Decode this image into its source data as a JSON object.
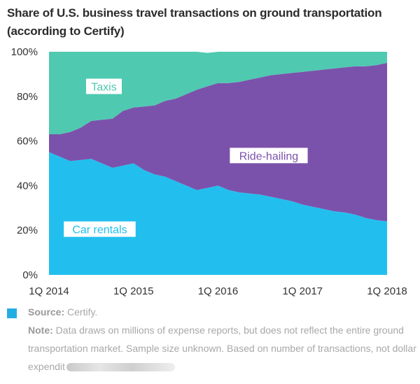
{
  "title": "Share of U.S. business travel transactions on ground transportation (according to Certify)",
  "colors": {
    "car_rentals": "#22bfee",
    "ride_hailing": "#7b52ab",
    "taxis": "#4fc9b0",
    "label_bg": "#ffffff"
  },
  "footer": {
    "source_label": "Source:",
    "source_text": "Certify.",
    "note_label": "Note:",
    "note_text": "Data draws on millions of expense reports, but does not reflect the entire ground transportation market. Sample size unknown. Based on number of transactions, not dollar expendit"
  },
  "chart_data": {
    "type": "area",
    "stacked": true,
    "title": "Share of U.S. business travel transactions on ground transportation (according to Certify)",
    "x_tick_labels": [
      "1Q 2014",
      "1Q 2015",
      "1Q 2016",
      "1Q 2017",
      "1Q 2018"
    ],
    "x_tick_positions": [
      0,
      4,
      8,
      12,
      16
    ],
    "x": [
      0,
      0.5,
      1,
      1.5,
      2,
      2.5,
      3,
      3.5,
      4,
      4.5,
      5,
      5.5,
      6,
      6.5,
      7,
      7.5,
      8,
      8.5,
      9,
      9.5,
      10,
      10.5,
      11,
      11.5,
      12,
      12.5,
      13,
      13.5,
      14,
      14.5,
      15,
      15.5,
      16
    ],
    "y_tick_labels": [
      "0%",
      "20%",
      "40%",
      "60%",
      "80%",
      "100%"
    ],
    "ylim": [
      0,
      100
    ],
    "series": [
      {
        "name": "Car rentals",
        "label_position": [
          2.4,
          20.5
        ],
        "values": [
          55,
          53,
          51,
          51.5,
          52,
          50,
          48,
          49,
          50,
          47,
          45,
          44,
          42,
          40,
          38,
          39,
          40,
          38,
          37,
          36.5,
          36,
          35,
          34,
          33,
          31.5,
          30.5,
          29.5,
          28.5,
          28,
          27,
          25.5,
          24.5,
          24
        ]
      },
      {
        "name": "Ride-hailing",
        "label_position": [
          10.4,
          53.5
        ],
        "values": [
          8,
          10,
          13,
          14.5,
          17,
          19.5,
          22,
          24.5,
          25,
          28.5,
          31,
          34,
          37,
          41,
          45,
          45.5,
          46,
          48,
          49.5,
          51,
          52.5,
          54.5,
          56,
          57.5,
          59.5,
          61,
          62.5,
          64,
          65,
          66.5,
          68,
          69.5,
          71
        ]
      },
      {
        "name": "Taxis",
        "label_position": [
          2.6,
          84.5
        ],
        "values": [
          37,
          37,
          36,
          34,
          31,
          30.5,
          30,
          26.5,
          25,
          24.5,
          24,
          22,
          21,
          19,
          17,
          15,
          14,
          14,
          13.5,
          12.5,
          11.5,
          10.5,
          10,
          9.5,
          9,
          8.5,
          8,
          7.5,
          7,
          6.5,
          6.5,
          6,
          5
        ]
      }
    ]
  }
}
